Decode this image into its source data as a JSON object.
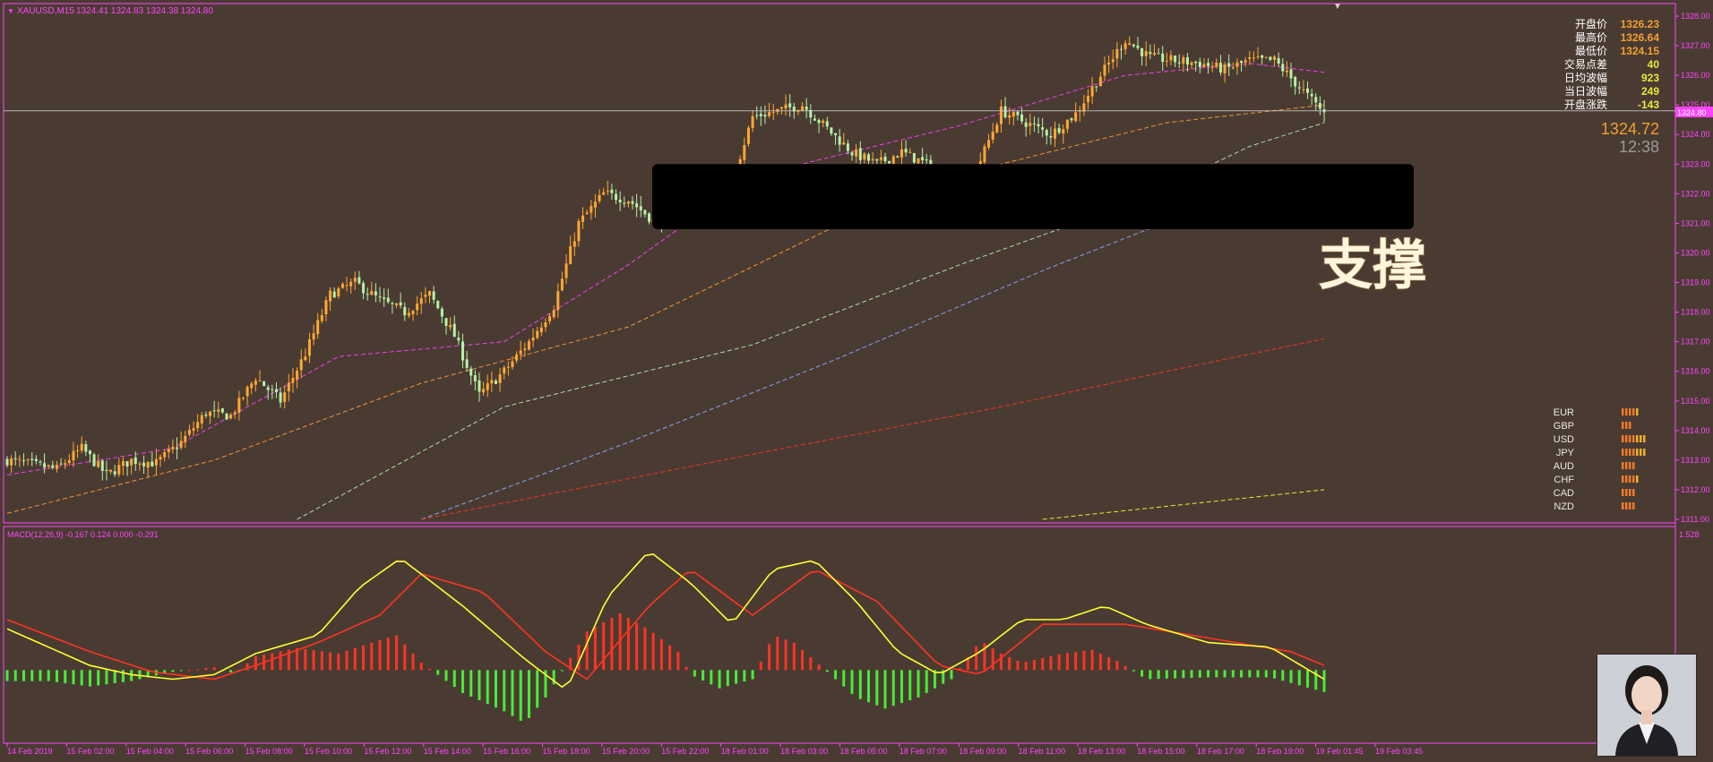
{
  "header": {
    "symbol": "XAUUSD,M15",
    "ohlc": "1324.41 1324.83 1324.38 1324.80"
  },
  "stats": [
    {
      "label": "开盘价",
      "value": "1326.23",
      "color": "#f0a030"
    },
    {
      "label": "最高价",
      "value": "1326.64",
      "color": "#f0a030"
    },
    {
      "label": "最低价",
      "value": "1324.15",
      "color": "#f0a030"
    },
    {
      "label": "交易点差",
      "value": "40",
      "color": "#e8e83a"
    },
    {
      "label": "日均波幅",
      "value": "923",
      "color": "#e8e83a"
    },
    {
      "label": "当日波幅",
      "value": "249",
      "color": "#e8e83a"
    },
    {
      "label": "开盘涨跌",
      "value": "-143",
      "color": "#e8e83a"
    }
  ],
  "current_price": "1324.72",
  "countdown": "12:38",
  "price_marker": "1324.80",
  "support_label": "支撑",
  "currency_strength": [
    {
      "name": "EUR",
      "bars": 5
    },
    {
      "name": "GBP",
      "bars": 3
    },
    {
      "name": "USD",
      "bars": 7
    },
    {
      "name": "JPY",
      "bars": 7
    },
    {
      "name": "AUD",
      "bars": 4
    },
    {
      "name": "CHF",
      "bars": 5
    },
    {
      "name": "CAD",
      "bars": 4
    },
    {
      "name": "NZD",
      "bars": 4
    }
  ],
  "macd": {
    "label": "MACD(12,26,9) -0.167 0.124 0.000 -0.291",
    "top_value": "1.528"
  },
  "colors": {
    "background": "#4a3b32",
    "bull": "#ffa733",
    "bear": "#b5f0a8",
    "axis": "#ff44ff",
    "macd_line": "#ffff33",
    "signal_line": "#ff3322",
    "hist_pos": "#ff3322",
    "hist_neg": "#44ee33"
  },
  "chart_data": [
    {
      "type": "candlestick",
      "ylim": [
        1311.0,
        1328.0
      ],
      "y_ticks": [
        "1328.00",
        "1327.00",
        "1326.00",
        "1325.00",
        "1324.00",
        "1323.00",
        "1322.00",
        "1321.00",
        "1320.00",
        "1319.00",
        "1318.00",
        "1317.00",
        "1316.00",
        "1315.00",
        "1314.00",
        "1313.00",
        "1312.00",
        "1311.00"
      ],
      "x_ticks": [
        "14 Feb 2019",
        "15 Feb 02:00",
        "15 Feb 04:00",
        "15 Feb 06:00",
        "15 Feb 08:00",
        "15 Feb 10:00",
        "15 Feb 12:00",
        "15 Feb 14:00",
        "15 Feb 16:00",
        "15 Feb 18:00",
        "15 Feb 20:00",
        "15 Feb 22:00",
        "18 Feb 01:00",
        "18 Feb 03:00",
        "18 Feb 05:00",
        "18 Feb 07:00",
        "18 Feb 09:00",
        "18 Feb 11:00",
        "18 Feb 13:00",
        "18 Feb 15:00",
        "18 Feb 17:00",
        "18 Feb 19:00",
        "19 Feb 01:45",
        "19 Feb 03:45"
      ],
      "close_path": [
        [
          0,
          1313.0
        ],
        [
          12,
          1312.7
        ],
        [
          18,
          1313.4
        ],
        [
          24,
          1312.5
        ],
        [
          30,
          1313.0
        ],
        [
          36,
          1312.9
        ],
        [
          42,
          1313.6
        ],
        [
          48,
          1314.6
        ],
        [
          54,
          1314.5
        ],
        [
          60,
          1315.8
        ],
        [
          66,
          1315.0
        ],
        [
          72,
          1316.6
        ],
        [
          78,
          1318.6
        ],
        [
          84,
          1319.0
        ],
        [
          90,
          1318.4
        ],
        [
          96,
          1318.0
        ],
        [
          102,
          1318.6
        ],
        [
          108,
          1317.2
        ],
        [
          114,
          1315.2
        ],
        [
          120,
          1316.0
        ],
        [
          126,
          1317.0
        ],
        [
          132,
          1318.2
        ],
        [
          138,
          1321.0
        ],
        [
          144,
          1322.0
        ],
        [
          150,
          1321.8
        ],
        [
          156,
          1321.1
        ],
        [
          162,
          1321.2
        ],
        [
          168,
          1321.5
        ],
        [
          174,
          1322.0
        ],
        [
          180,
          1324.6
        ],
        [
          186,
          1324.8
        ],
        [
          192,
          1325.0
        ],
        [
          198,
          1324.2
        ],
        [
          204,
          1323.4
        ],
        [
          210,
          1323.0
        ],
        [
          216,
          1323.4
        ],
        [
          222,
          1323.0
        ],
        [
          228,
          1321.9
        ],
        [
          234,
          1322.8
        ],
        [
          240,
          1324.8
        ],
        [
          246,
          1324.4
        ],
        [
          252,
          1324.0
        ],
        [
          258,
          1324.7
        ],
        [
          264,
          1326.0
        ],
        [
          270,
          1327.2
        ],
        [
          276,
          1326.6
        ],
        [
          282,
          1326.5
        ],
        [
          288,
          1326.4
        ],
        [
          294,
          1326.2
        ],
        [
          300,
          1326.5
        ],
        [
          306,
          1326.5
        ],
        [
          312,
          1325.6
        ],
        [
          318,
          1324.72
        ]
      ],
      "moving_averages": [
        {
          "color": "#ff44ff",
          "points": [
            [
              0,
              1312.5
            ],
            [
              40,
              1313.4
            ],
            [
              80,
              1316.5
            ],
            [
              120,
              1317.0
            ],
            [
              150,
              1319.6
            ],
            [
              180,
              1322.6
            ],
            [
              230,
              1324.3
            ],
            [
              270,
              1326.0
            ],
            [
              300,
              1326.4
            ],
            [
              318,
              1326.1
            ]
          ]
        },
        {
          "color": "#ffa040",
          "points": [
            [
              0,
              1311.2
            ],
            [
              50,
              1313.0
            ],
            [
              100,
              1315.6
            ],
            [
              150,
              1317.5
            ],
            [
              200,
              1320.9
            ],
            [
              240,
              1323.0
            ],
            [
              280,
              1324.4
            ],
            [
              318,
              1325.0
            ]
          ]
        },
        {
          "color": "#b5f0c0",
          "points": [
            [
              70,
              1311.0
            ],
            [
              120,
              1314.8
            ],
            [
              180,
              1316.9
            ],
            [
              230,
              1319.6
            ],
            [
              270,
              1321.6
            ],
            [
              300,
              1323.6
            ],
            [
              318,
              1324.4
            ]
          ]
        },
        {
          "color": "#8ab0ff",
          "points": [
            [
              100,
              1311.0
            ],
            [
              150,
              1313.6
            ],
            [
              200,
              1316.4
            ],
            [
              250,
              1319.4
            ],
            [
              290,
              1321.6
            ],
            [
              318,
              1323.0
            ]
          ]
        },
        {
          "color": "#ff3322",
          "points": [
            [
              100,
              1311.0
            ],
            [
              180,
              1313.2
            ],
            [
              240,
              1314.8
            ],
            [
              280,
              1316.0
            ],
            [
              318,
              1317.1
            ]
          ]
        },
        {
          "color": "#ffff33",
          "points": [
            [
              250,
              1311.0
            ],
            [
              318,
              1312.0
            ]
          ]
        }
      ],
      "support_zone": [
        1320.8,
        1323.0
      ]
    },
    {
      "type": "bar+line",
      "title": "MACD(12,26,9)",
      "macd_line": [
        [
          0,
          0.45
        ],
        [
          10,
          0.25
        ],
        [
          20,
          0.05
        ],
        [
          30,
          -0.05
        ],
        [
          40,
          -0.1
        ],
        [
          50,
          -0.05
        ],
        [
          60,
          0.18
        ],
        [
          75,
          0.38
        ],
        [
          85,
          0.9
        ],
        [
          95,
          1.22
        ],
        [
          110,
          0.7
        ],
        [
          125,
          0.12
        ],
        [
          135,
          -0.22
        ],
        [
          145,
          0.8
        ],
        [
          155,
          1.3
        ],
        [
          165,
          0.95
        ],
        [
          175,
          0.5
        ],
        [
          185,
          1.1
        ],
        [
          195,
          1.2
        ],
        [
          205,
          0.75
        ],
        [
          215,
          0.2
        ],
        [
          225,
          -0.05
        ],
        [
          235,
          0.2
        ],
        [
          245,
          0.55
        ],
        [
          255,
          0.55
        ],
        [
          265,
          0.7
        ],
        [
          275,
          0.5
        ],
        [
          290,
          0.3
        ],
        [
          305,
          0.25
        ],
        [
          318,
          -0.1
        ]
      ],
      "signal_line": [
        [
          0,
          0.55
        ],
        [
          20,
          0.2
        ],
        [
          35,
          -0.02
        ],
        [
          50,
          -0.1
        ],
        [
          60,
          0.05
        ],
        [
          75,
          0.3
        ],
        [
          90,
          0.6
        ],
        [
          100,
          1.05
        ],
        [
          115,
          0.85
        ],
        [
          130,
          0.2
        ],
        [
          140,
          -0.1
        ],
        [
          155,
          0.7
        ],
        [
          165,
          1.1
        ],
        [
          180,
          0.6
        ],
        [
          195,
          1.1
        ],
        [
          210,
          0.75
        ],
        [
          225,
          0.05
        ],
        [
          235,
          -0.05
        ],
        [
          250,
          0.5
        ],
        [
          270,
          0.5
        ],
        [
          290,
          0.35
        ],
        [
          310,
          0.2
        ],
        [
          318,
          0.05
        ]
      ],
      "histogram": [
        [
          0,
          -0.12
        ],
        [
          10,
          -0.12
        ],
        [
          20,
          -0.18
        ],
        [
          30,
          -0.12
        ],
        [
          40,
          -0.02
        ],
        [
          50,
          0.03
        ],
        [
          55,
          -0.04
        ],
        [
          60,
          0.15
        ],
        [
          70,
          0.24
        ],
        [
          80,
          0.18
        ],
        [
          88,
          0.3
        ],
        [
          94,
          0.38
        ],
        [
          100,
          0.08
        ],
        [
          110,
          -0.25
        ],
        [
          120,
          -0.45
        ],
        [
          125,
          -0.58
        ],
        [
          130,
          -0.3
        ],
        [
          140,
          0.42
        ],
        [
          148,
          0.62
        ],
        [
          155,
          0.44
        ],
        [
          162,
          0.2
        ],
        [
          165,
          -0.05
        ],
        [
          172,
          -0.2
        ],
        [
          180,
          -0.1
        ],
        [
          185,
          0.38
        ],
        [
          190,
          0.3
        ],
        [
          195,
          0.1
        ],
        [
          205,
          -0.3
        ],
        [
          212,
          -0.42
        ],
        [
          220,
          -0.3
        ],
        [
          228,
          -0.1
        ],
        [
          235,
          0.32
        ],
        [
          240,
          0.18
        ],
        [
          245,
          0.08
        ],
        [
          255,
          0.18
        ],
        [
          262,
          0.22
        ],
        [
          268,
          0.1
        ],
        [
          275,
          -0.1
        ],
        [
          290,
          -0.08
        ],
        [
          305,
          -0.08
        ],
        [
          318,
          -0.24
        ]
      ],
      "ylim": [
        -0.75,
        1.45
      ]
    }
  ]
}
